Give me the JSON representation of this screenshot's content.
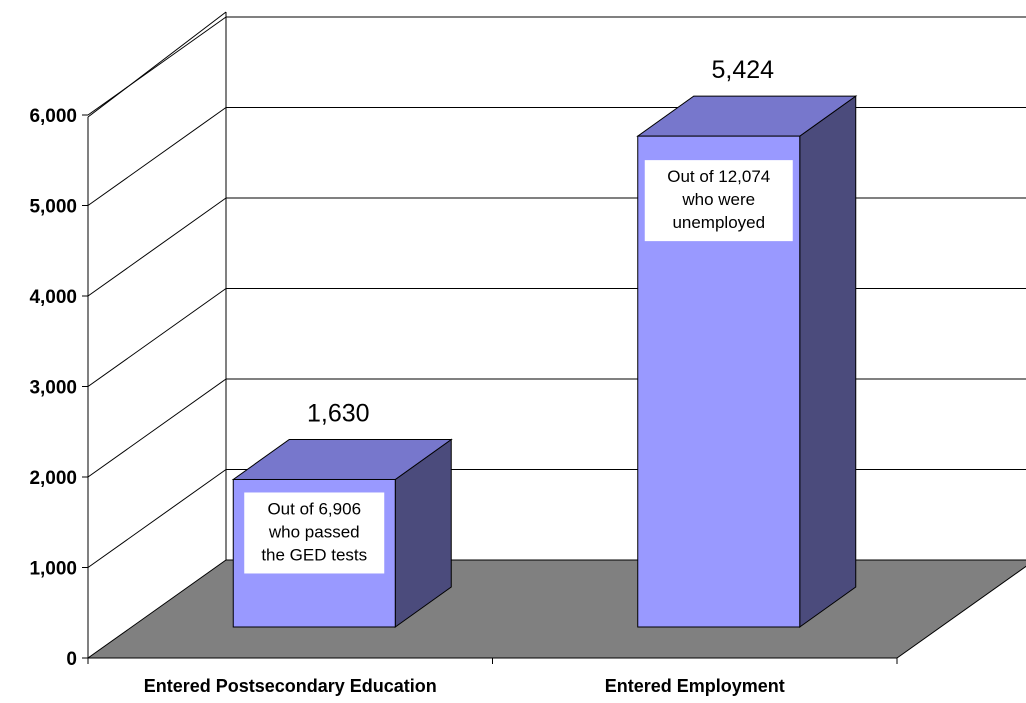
{
  "chart_data": {
    "type": "bar",
    "categories": [
      "Entered Postsecondary Education",
      "Entered Employment"
    ],
    "values": [
      1630,
      5424
    ],
    "value_labels": [
      "1,630",
      "5,424"
    ],
    "annotations": [
      [
        "Out of 6,906",
        "who passed",
        "the GED tests"
      ],
      [
        "Out of 12,074",
        "who were",
        "unemployed"
      ]
    ],
    "y_ticks": [
      0,
      1000,
      2000,
      3000,
      4000,
      5000,
      6000
    ],
    "y_tick_labels": [
      "0",
      "1,000",
      "2,000",
      "3,000",
      "4,000",
      "5,000",
      "6,000"
    ],
    "ylim": [
      0,
      6000
    ],
    "three_d": true,
    "grid": true,
    "legend": "none",
    "colors": {
      "bar_front": "#9999ff",
      "bar_top": "#7777cc",
      "bar_side": "#4b4b7c",
      "floor": "#808080",
      "grid": "#000000",
      "annotation_bg": "#ffffff"
    }
  }
}
